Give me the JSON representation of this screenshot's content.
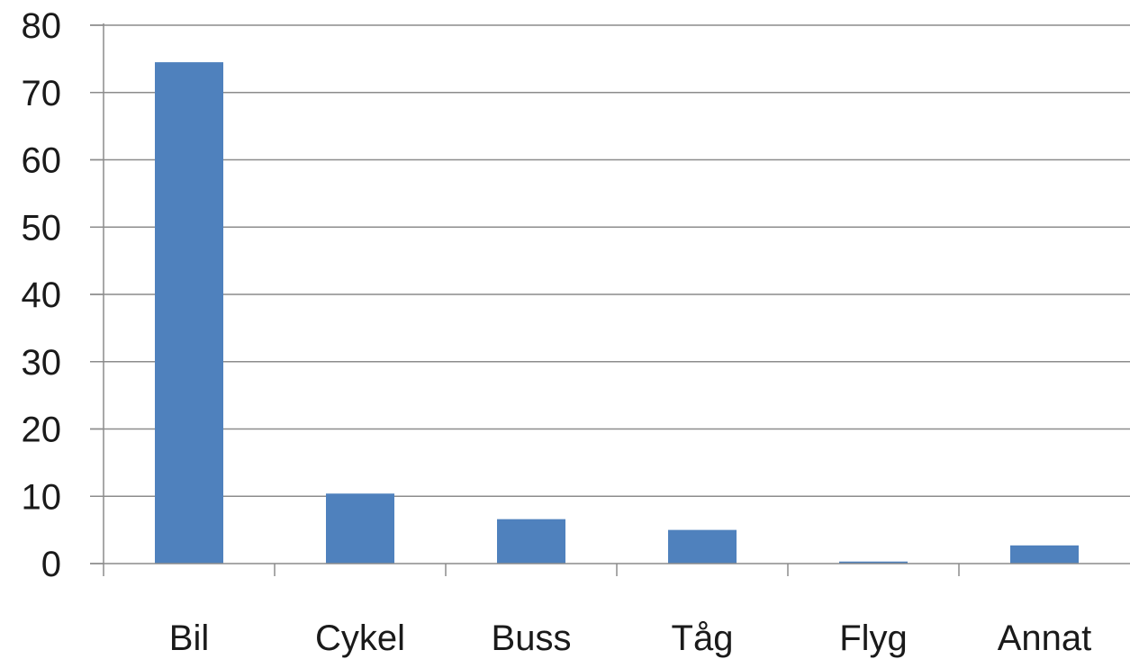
{
  "chart_data": {
    "type": "bar",
    "categories": [
      "Bil",
      "Cykel",
      "Buss",
      "Tåg",
      "Flyg",
      "Annat"
    ],
    "values": [
      74.5,
      10.4,
      6.6,
      5.0,
      0.3,
      2.7
    ],
    "ylim": [
      0,
      80
    ],
    "yticks": [
      0,
      10,
      20,
      30,
      40,
      50,
      60,
      70,
      80
    ],
    "grid": true,
    "legend": "none",
    "colors": {
      "bar": "#4f81bd",
      "grid": "#8c8c8c",
      "axis": "#8c8c8c",
      "text": "#1a1a1a"
    }
  }
}
